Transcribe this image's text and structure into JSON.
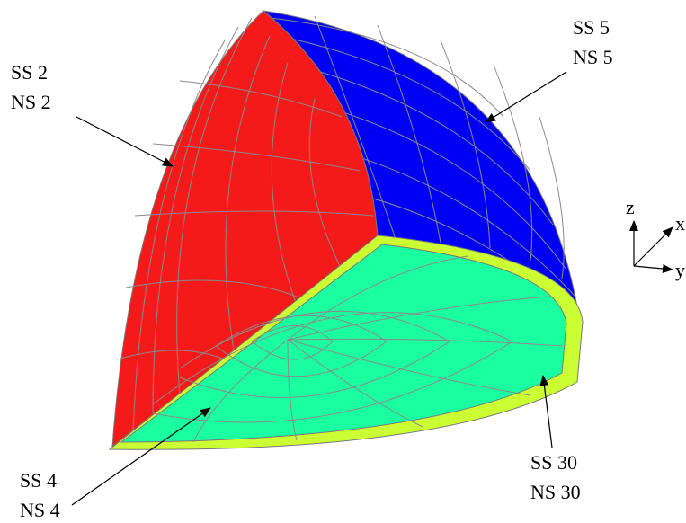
{
  "labels": [
    {
      "ss": "SS 2",
      "ns": "NS 2"
    },
    {
      "ss": "SS 5",
      "ns": "NS 5"
    },
    {
      "ss": "SS 4",
      "ns": "NS 4"
    },
    {
      "ss": "SS 30",
      "ns": "NS 30"
    }
  ],
  "axes": {
    "z": "z",
    "x": "x",
    "y": "y"
  }
}
